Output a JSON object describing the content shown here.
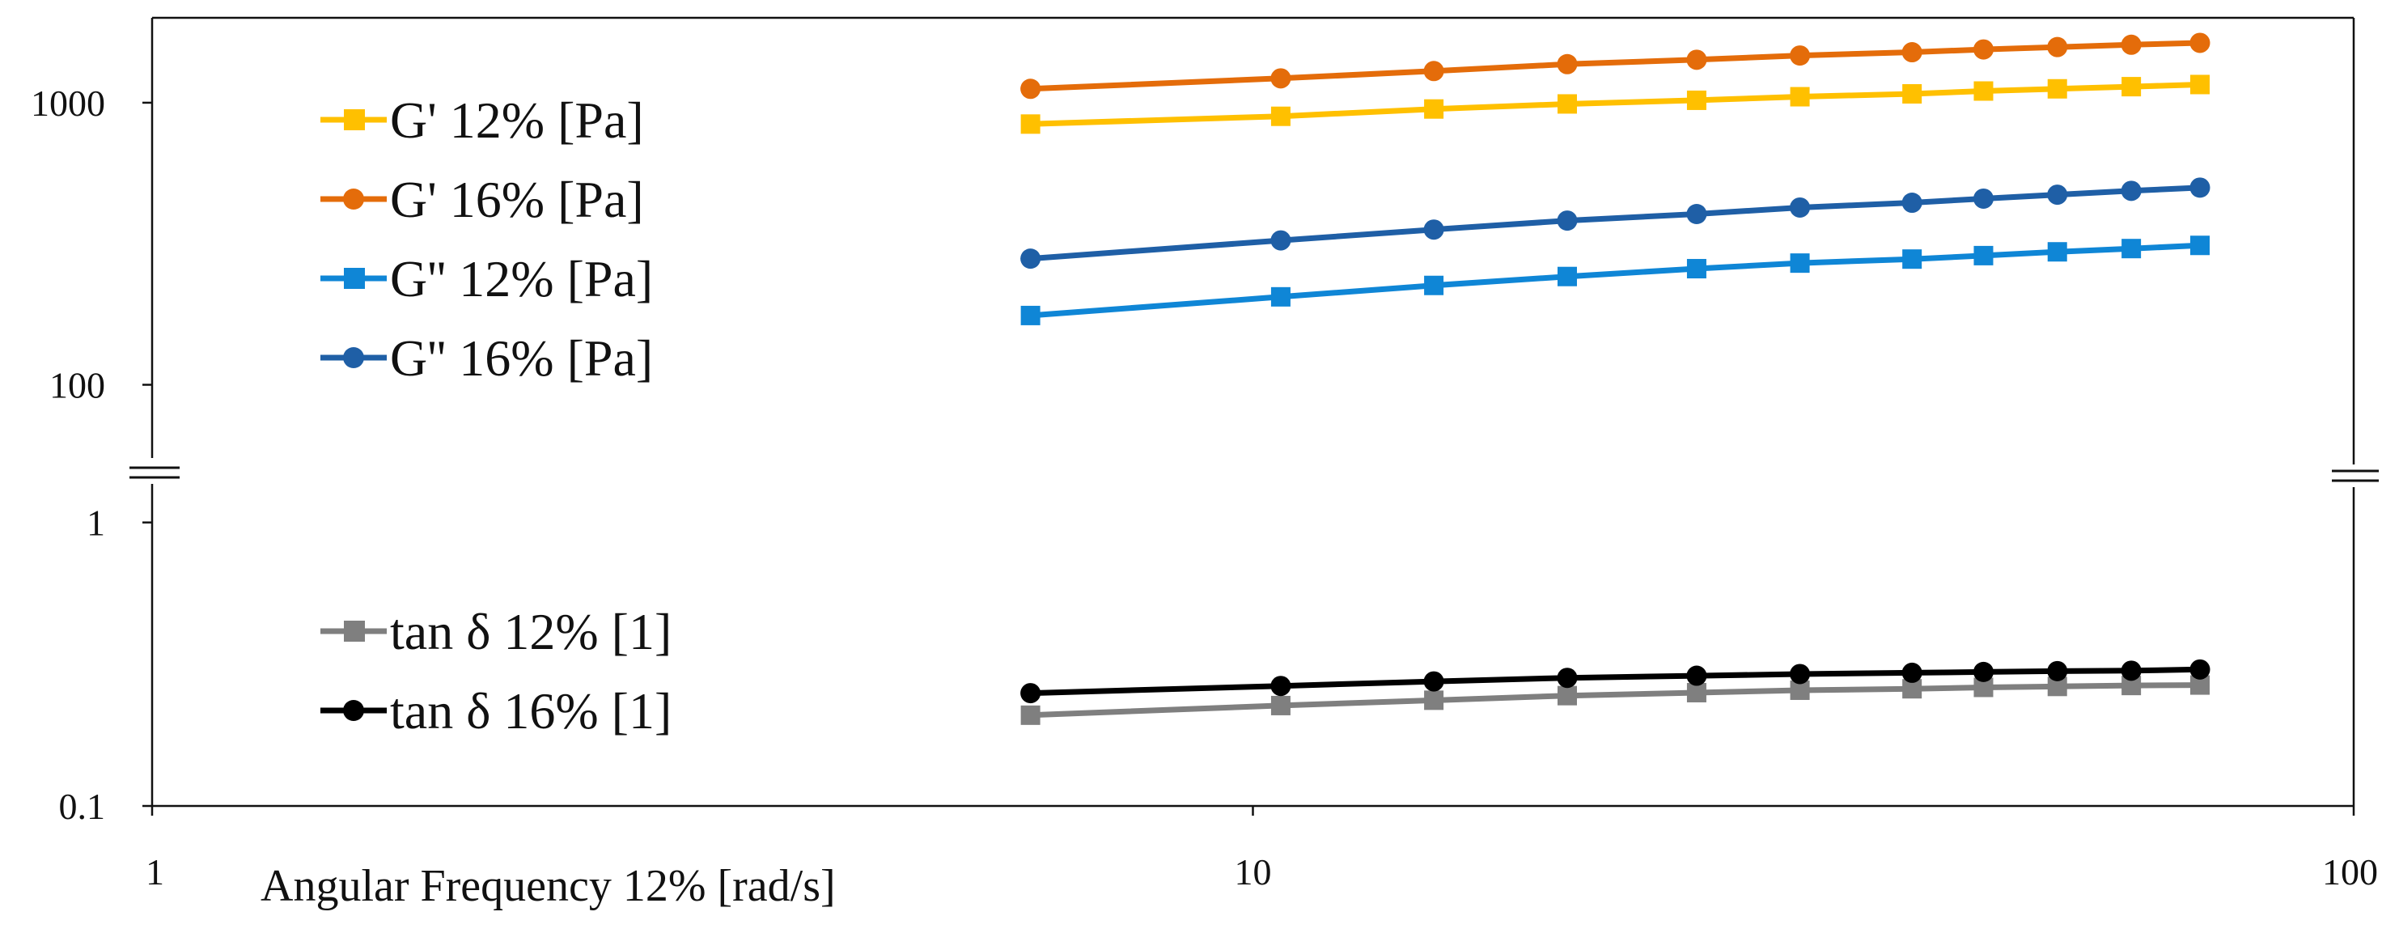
{
  "chart_data": {
    "type": "line",
    "x_scale": "log",
    "y_scale": "log",
    "broken_y_axis": true,
    "xlabel": "Angular Frequency 12% [rad/s]",
    "ylabel": "",
    "xlim": [
      1,
      100
    ],
    "x_ticks": [
      1,
      10,
      100
    ],
    "x_tick_labels": [
      "1",
      "10",
      "100"
    ],
    "x": [
      6.28,
      10.6,
      14.6,
      19.3,
      25.3,
      31.4,
      39.7,
      46.1,
      53.8,
      62.8,
      72.5
    ],
    "panels": [
      {
        "name": "upper",
        "ylim": [
          55,
          2000
        ],
        "y_ticks": [
          100,
          1000
        ],
        "y_tick_labels": [
          "100",
          "1000"
        ],
        "legend_position": "top-left",
        "series": [
          {
            "name": "G' 12% [Pa]",
            "marker": "square",
            "color": "#FFC000",
            "values": [
              840,
              895,
              950,
              990,
              1020,
              1050,
              1075,
              1100,
              1120,
              1140,
              1160
            ]
          },
          {
            "name": "G' 16% [Pa]",
            "marker": "circle",
            "color": "#E46C0A",
            "values": [
              1120,
              1220,
              1295,
              1370,
              1420,
              1470,
              1510,
              1545,
              1575,
              1605,
              1630
            ]
          },
          {
            "name": "G'' 12% [Pa]",
            "marker": "square",
            "color": "#0F86D6",
            "values": [
              176,
              205,
              225,
              242,
              258,
              270,
              279,
              287,
              296,
              304,
              312
            ]
          },
          {
            "name": "G'' 16% [Pa]",
            "marker": "circle",
            "color": "#1F5FA6",
            "values": [
              280,
              325,
              355,
              382,
              403,
              425,
              442,
              457,
              472,
              487,
              500
            ]
          }
        ]
      },
      {
        "name": "lower",
        "ylim": [
          0.1,
          1.35
        ],
        "y_ticks": [
          0.1,
          1
        ],
        "y_tick_labels": [
          "0.1",
          "1"
        ],
        "legend_position": "center-left",
        "series": [
          {
            "name": "tan δ 12% [1]",
            "marker": "square",
            "color": "#7F7F7F",
            "values": [
              0.209,
              0.226,
              0.236,
              0.245,
              0.251,
              0.256,
              0.259,
              0.262,
              0.264,
              0.266,
              0.267
            ]
          },
          {
            "name": "tan δ 16% [1]",
            "marker": "circle",
            "color": "#000000",
            "values": [
              0.25,
              0.265,
              0.275,
              0.283,
              0.288,
              0.292,
              0.295,
              0.297,
              0.299,
              0.3,
              0.303
            ]
          }
        ]
      }
    ]
  }
}
